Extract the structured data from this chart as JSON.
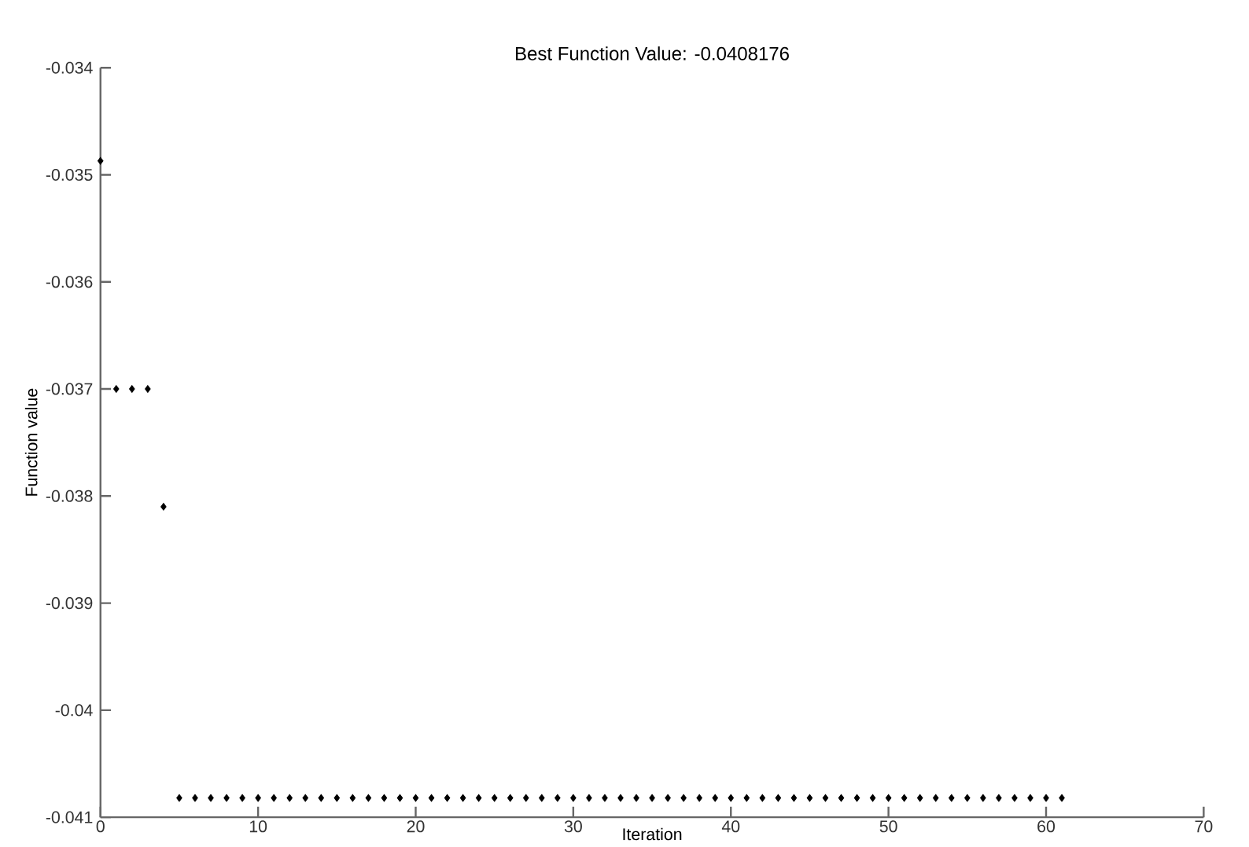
{
  "chart_data": {
    "type": "scatter",
    "title": "Best Function Value: -0.0408176",
    "xlabel": "Iteration",
    "ylabel": "Function value",
    "x": [
      0,
      1,
      2,
      3,
      4,
      5,
      6,
      7,
      8,
      9,
      10,
      11,
      12,
      13,
      14,
      15,
      16,
      17,
      18,
      19,
      20,
      21,
      22,
      23,
      24,
      25,
      26,
      27,
      28,
      29,
      30,
      31,
      32,
      33,
      34,
      35,
      36,
      37,
      38,
      39,
      40,
      41,
      42,
      43,
      44,
      45,
      46,
      47,
      48,
      49,
      50,
      51,
      52,
      53,
      54,
      55,
      56,
      57,
      58,
      59,
      60,
      61
    ],
    "values": [
      -0.03487,
      -0.037,
      -0.037,
      -0.037,
      -0.0381,
      -0.04082,
      -0.04082,
      -0.04082,
      -0.04082,
      -0.04082,
      -0.04082,
      -0.04082,
      -0.04082,
      -0.04082,
      -0.04082,
      -0.04082,
      -0.04082,
      -0.04082,
      -0.04082,
      -0.04082,
      -0.04082,
      -0.04082,
      -0.04082,
      -0.04082,
      -0.04082,
      -0.04082,
      -0.04082,
      -0.04082,
      -0.04082,
      -0.04082,
      -0.04082,
      -0.04082,
      -0.04082,
      -0.04082,
      -0.04082,
      -0.04082,
      -0.04082,
      -0.04082,
      -0.04082,
      -0.04082,
      -0.04082,
      -0.04082,
      -0.04082,
      -0.04082,
      -0.04082,
      -0.04082,
      -0.04082,
      -0.04082,
      -0.04082,
      -0.04082,
      -0.04082,
      -0.04082,
      -0.04082,
      -0.04082,
      -0.04082,
      -0.04082,
      -0.04082,
      -0.04082,
      -0.04082,
      -0.04082,
      -0.04082,
      -0.04082
    ],
    "color": "#000000",
    "marker": "diamond",
    "xlim": [
      0,
      70
    ],
    "xticks": [
      0,
      10,
      20,
      30,
      40,
      50,
      60,
      70
    ],
    "ylim": [
      -0.041,
      -0.034
    ],
    "yticks": [
      -0.041,
      -0.04,
      -0.039,
      -0.038,
      -0.037,
      -0.036,
      -0.035,
      -0.034
    ],
    "grid": false
  }
}
